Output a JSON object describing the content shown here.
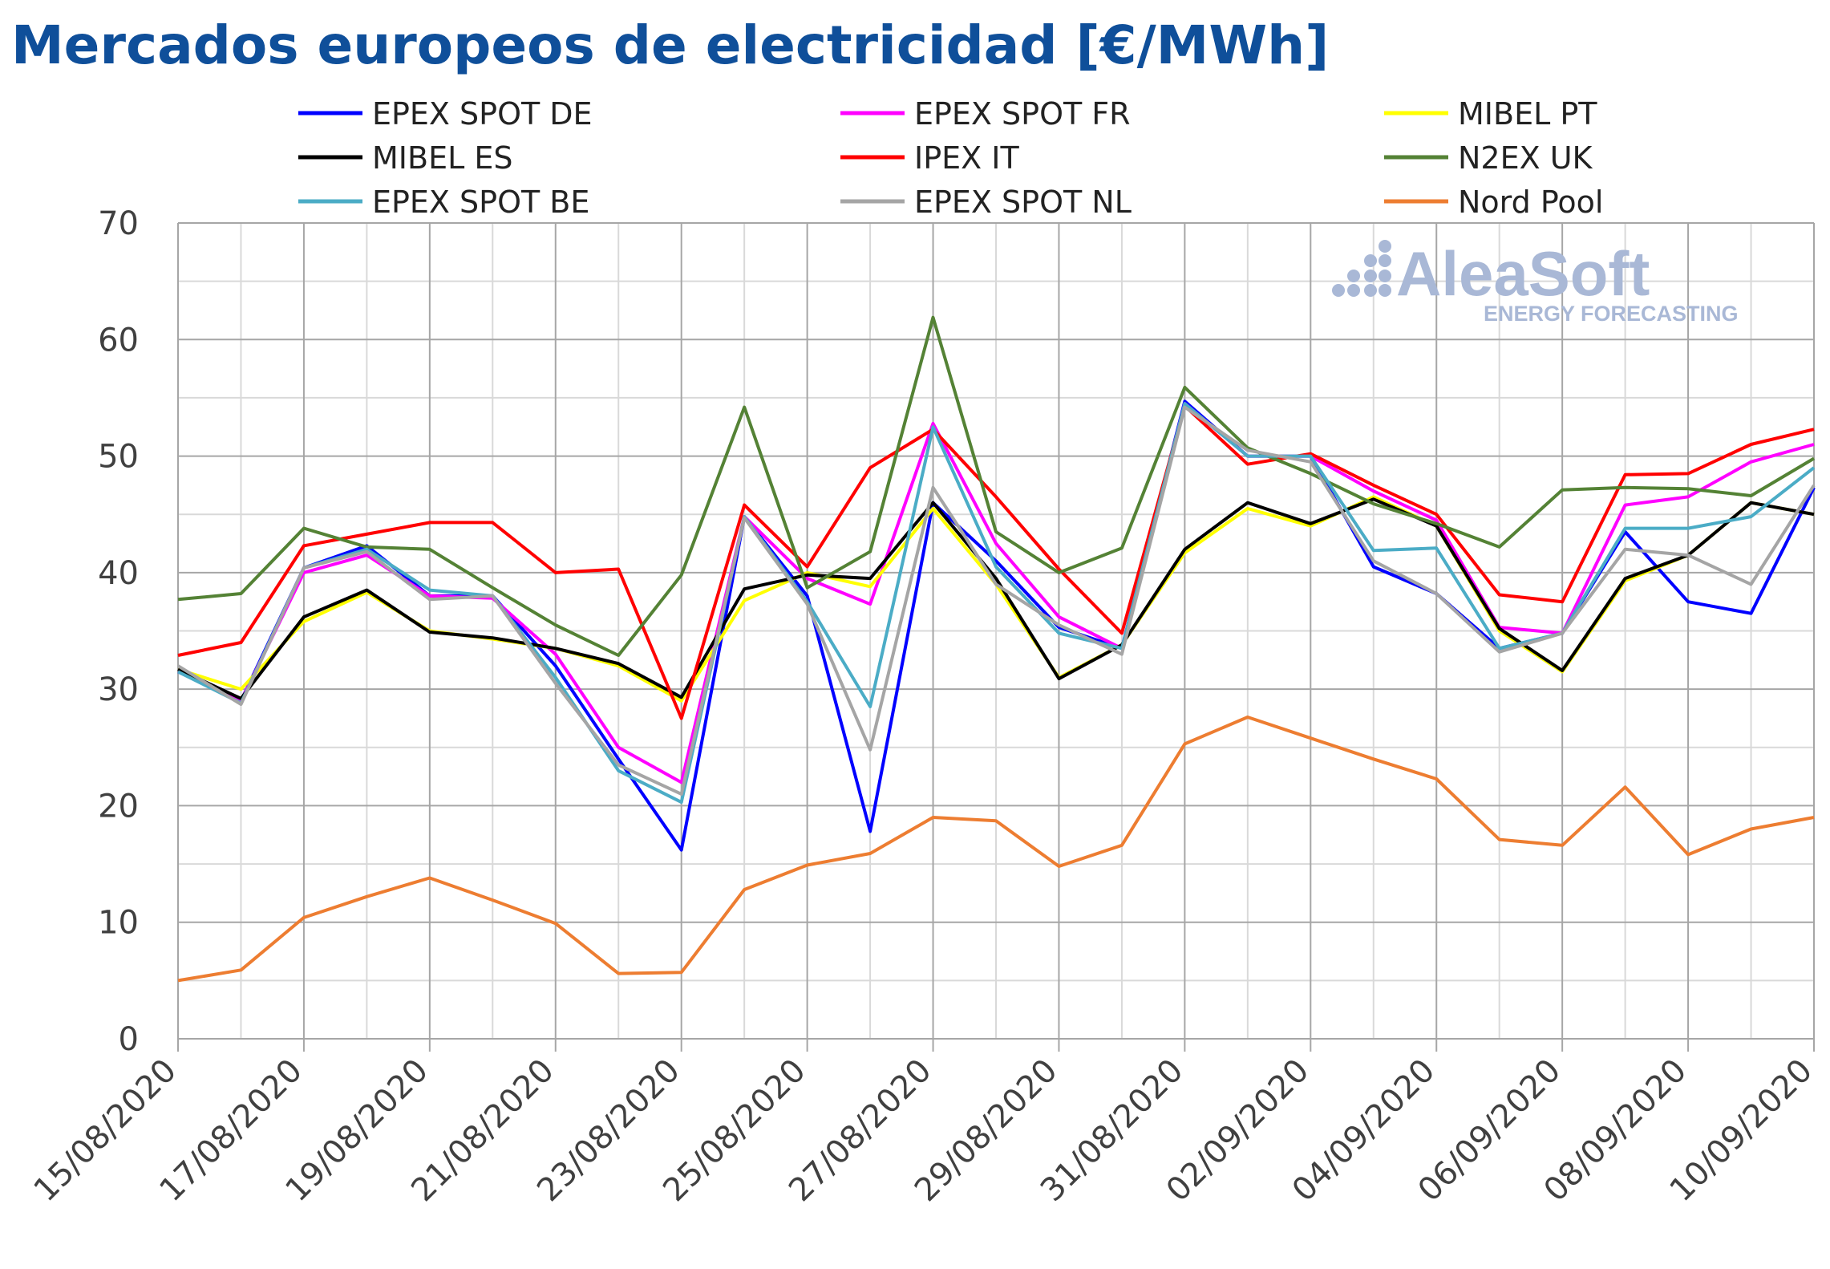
{
  "title": "Mercados europeos de electricidad [€/MWh]",
  "watermark": {
    "brand": "AleaSoft",
    "tagline": "ENERGY FORECASTING",
    "color": "#a9b8d6"
  },
  "chart_data": {
    "type": "line",
    "ylim": [
      0,
      70
    ],
    "yticks": [
      0,
      10,
      20,
      30,
      40,
      50,
      60,
      70
    ],
    "grid": true,
    "legend_position": "top",
    "x": [
      "15/08/2020",
      "16/08/2020",
      "17/08/2020",
      "18/08/2020",
      "19/08/2020",
      "20/08/2020",
      "21/08/2020",
      "22/08/2020",
      "23/08/2020",
      "24/08/2020",
      "25/08/2020",
      "26/08/2020",
      "27/08/2020",
      "28/08/2020",
      "29/08/2020",
      "30/08/2020",
      "31/08/2020",
      "01/09/2020",
      "02/09/2020",
      "03/09/2020",
      "04/09/2020",
      "05/09/2020",
      "06/09/2020",
      "07/09/2020",
      "08/09/2020",
      "09/09/2020",
      "10/09/2020"
    ],
    "xtick_labels": [
      "15/08/2020",
      "17/08/2020",
      "19/08/2020",
      "21/08/2020",
      "23/08/2020",
      "25/08/2020",
      "27/08/2020",
      "29/08/2020",
      "31/08/2020",
      "02/09/2020",
      "04/09/2020",
      "06/09/2020",
      "08/09/2020",
      "10/09/2020"
    ],
    "series": [
      {
        "name": "EPEX SPOT DE",
        "color": "#0000ff",
        "values": [
          31.5,
          29.0,
          40.4,
          42.3,
          38.0,
          38.0,
          32.0,
          24.0,
          16.2,
          44.8,
          38.0,
          17.8,
          46.0,
          41.0,
          35.3,
          33.5,
          54.7,
          50.0,
          50.0,
          40.5,
          38.2,
          33.5,
          34.8,
          43.5,
          37.5,
          36.5,
          47.3
        ]
      },
      {
        "name": "EPEX SPOT FR",
        "color": "#ff00ff",
        "values": [
          31.5,
          29.0,
          40.0,
          41.5,
          38.0,
          37.8,
          33.0,
          25.0,
          22.0,
          44.8,
          39.5,
          37.3,
          52.8,
          42.5,
          36.2,
          33.5,
          54.5,
          50.0,
          50.0,
          47.0,
          44.5,
          35.3,
          34.8,
          45.8,
          46.5,
          49.5,
          51.0
        ]
      },
      {
        "name": "MIBEL PT",
        "color": "#ffff00",
        "values": [
          31.7,
          30.0,
          35.8,
          38.3,
          35.0,
          34.3,
          33.5,
          32.0,
          29.0,
          37.6,
          40.0,
          38.8,
          45.5,
          39.0,
          31.0,
          33.8,
          41.7,
          45.5,
          44.0,
          46.5,
          44.0,
          35.0,
          31.5,
          39.3,
          41.5,
          46.0,
          45.0
        ]
      },
      {
        "name": "MIBEL ES",
        "color": "#000000",
        "values": [
          31.7,
          29.2,
          36.2,
          38.5,
          34.9,
          34.4,
          33.5,
          32.2,
          29.3,
          38.6,
          39.8,
          39.5,
          46.0,
          39.5,
          30.9,
          33.8,
          42.0,
          46.0,
          44.2,
          46.3,
          44.0,
          35.2,
          31.6,
          39.5,
          41.5,
          46.0,
          45.0
        ]
      },
      {
        "name": "IPEX IT",
        "color": "#ff0000",
        "values": [
          32.9,
          34.0,
          42.3,
          43.3,
          44.3,
          44.3,
          40.0,
          40.3,
          27.5,
          45.8,
          40.5,
          49.0,
          52.3,
          46.5,
          40.3,
          34.8,
          54.3,
          49.3,
          50.2,
          47.5,
          45.0,
          38.1,
          37.5,
          48.4,
          48.5,
          51.0,
          52.3
        ]
      },
      {
        "name": "N2EX UK",
        "color": "#548235",
        "values": [
          37.7,
          38.2,
          43.8,
          42.2,
          42.0,
          38.7,
          35.5,
          32.9,
          39.8,
          54.2,
          38.7,
          41.8,
          61.9,
          43.5,
          40.0,
          42.1,
          55.9,
          50.7,
          48.5,
          45.9,
          44.2,
          42.2,
          47.1,
          47.3,
          47.2,
          46.6,
          49.8
        ]
      },
      {
        "name": "EPEX SPOT BE",
        "color": "#4bacc6",
        "values": [
          31.5,
          28.8,
          40.4,
          42.0,
          38.5,
          38.0,
          31.0,
          23.0,
          20.3,
          44.8,
          37.5,
          28.5,
          52.5,
          40.5,
          34.8,
          33.5,
          54.5,
          50.0,
          50.0,
          41.9,
          42.1,
          33.5,
          34.8,
          43.8,
          43.8,
          44.8,
          49.0
        ]
      },
      {
        "name": "EPEX SPOT NL",
        "color": "#a5a5a5",
        "values": [
          32.0,
          28.7,
          40.4,
          41.8,
          37.7,
          38.0,
          30.5,
          23.5,
          21.0,
          44.7,
          37.3,
          24.8,
          47.3,
          39.0,
          35.5,
          33.0,
          54.2,
          50.5,
          49.5,
          41.0,
          38.2,
          33.2,
          34.8,
          42.0,
          41.5,
          39.0,
          47.5
        ]
      },
      {
        "name": "Nord Pool",
        "color": "#ed7d31",
        "values": [
          5.0,
          5.9,
          10.4,
          12.2,
          13.8,
          11.9,
          9.9,
          5.6,
          5.7,
          12.8,
          14.9,
          15.9,
          19.0,
          18.7,
          14.8,
          16.6,
          25.3,
          27.6,
          25.8,
          24.0,
          22.3,
          17.1,
          16.6,
          21.6,
          15.8,
          18.0,
          19.0
        ]
      }
    ]
  }
}
